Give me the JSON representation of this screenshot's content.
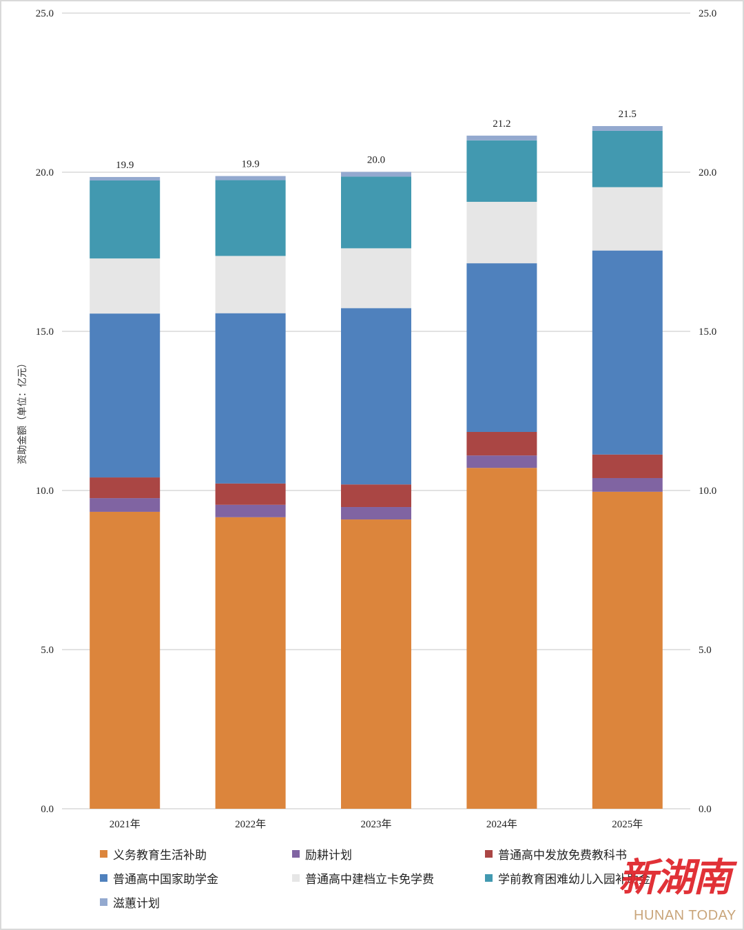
{
  "chart_data": {
    "type": "bar",
    "stacked": true,
    "title": "",
    "xlabel": "",
    "ylabel": "资助金额（单位：亿元）",
    "ylim": [
      0,
      25
    ],
    "yticks": [
      "0.0",
      "5.0",
      "10.0",
      "15.0",
      "20.0",
      "25.0"
    ],
    "ytick_values": [
      0,
      5,
      10,
      15,
      20,
      25
    ],
    "secondary_yaxis": true,
    "grid": true,
    "legend_position": "bottom",
    "categories": [
      "2021年",
      "2022年",
      "2023年",
      "2024年",
      "2025年"
    ],
    "totals": [
      19.9,
      19.9,
      20.0,
      21.2,
      21.5
    ],
    "total_labels": [
      "19.9",
      "19.9",
      "20.0",
      "21.2",
      "21.5"
    ],
    "series": [
      {
        "name": "义务教育生活补助",
        "color": "#dc853c",
        "values": [
          9.33,
          9.16,
          9.09,
          10.71,
          9.96
        ]
      },
      {
        "name": "励耕计划",
        "color": "#8064a2",
        "values": [
          0.43,
          0.39,
          0.39,
          0.39,
          0.43
        ]
      },
      {
        "name": "普通高中发放免费教科书",
        "color": "#aa4644",
        "values": [
          0.65,
          0.67,
          0.71,
          0.74,
          0.74
        ]
      },
      {
        "name": "普通高中国家助学金",
        "color": "#4f81bd",
        "values": [
          5.15,
          5.35,
          5.54,
          5.3,
          6.41
        ]
      },
      {
        "name": "普通高中建档立卡免学费",
        "color": "#e6e6e6",
        "values": [
          1.73,
          1.8,
          1.88,
          1.93,
          1.99
        ]
      },
      {
        "name": "学前教育困难幼儿入园补助金",
        "color": "#4299b0",
        "values": [
          2.45,
          2.38,
          2.25,
          1.93,
          1.77
        ]
      },
      {
        "name": "滋蕙计划",
        "color": "#93a9cf",
        "values": [
          0.11,
          0.13,
          0.15,
          0.15,
          0.15
        ]
      }
    ]
  },
  "watermark": {
    "chinese": "新湖南",
    "english": "HUNAN TODAY"
  }
}
